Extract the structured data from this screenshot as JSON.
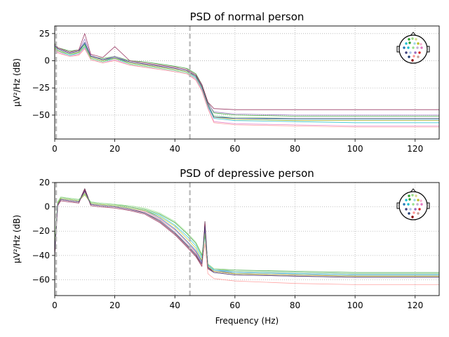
{
  "chart_data": [
    {
      "type": "line",
      "title": "PSD of normal person",
      "xlabel": "",
      "ylabel": "µV²/Hz (dB)",
      "xlim": [
        0,
        128
      ],
      "ylim": [
        -72,
        32
      ],
      "xticks": [
        0,
        20,
        40,
        60,
        80,
        100,
        120
      ],
      "yticks": [
        25,
        0,
        -25,
        -50
      ],
      "grid": true,
      "vlines": [
        0.5,
        45
      ],
      "sensor_inset": "top-right",
      "series": [
        {
          "color": "#2ca02c",
          "x": [
            0,
            1,
            5,
            8,
            10,
            12,
            16,
            20,
            25,
            30,
            35,
            40,
            44,
            47,
            49,
            51,
            53,
            60,
            80,
            100,
            128
          ],
          "y": [
            16,
            12,
            9,
            10,
            15,
            4,
            2,
            4,
            0,
            -1,
            -3,
            -5,
            -7,
            -12,
            -22,
            -38,
            -48,
            -50,
            -51,
            -51,
            -51
          ]
        },
        {
          "color": "#1f77b4",
          "x": [
            0,
            1,
            5,
            8,
            10,
            12,
            16,
            20,
            25,
            30,
            35,
            40,
            44,
            47,
            49,
            51,
            53,
            60,
            80,
            100,
            128
          ],
          "y": [
            13,
            10,
            6,
            8,
            16,
            3,
            0,
            3,
            -2,
            -4,
            -6,
            -8,
            -10,
            -15,
            -24,
            -40,
            -51,
            -53,
            -54,
            -54,
            -54
          ]
        },
        {
          "color": "#9467bd",
          "x": [
            0,
            1,
            5,
            8,
            10,
            12,
            16,
            20,
            25,
            30,
            35,
            40,
            44,
            47,
            49,
            51,
            53,
            60,
            80,
            100,
            128
          ],
          "y": [
            14,
            11,
            7,
            9,
            20,
            5,
            1,
            4,
            -1,
            -3,
            -5,
            -7,
            -9,
            -14,
            -23,
            -39,
            -47,
            -49,
            -50,
            -50,
            -50
          ]
        },
        {
          "color": "#8b1a4b",
          "x": [
            0,
            1,
            5,
            8,
            10,
            12,
            16,
            20,
            25,
            30,
            35,
            40,
            44,
            47,
            49,
            51,
            53,
            60,
            80,
            100,
            128
          ],
          "y": [
            15,
            12,
            8,
            10,
            25,
            6,
            3,
            13,
            0,
            -2,
            -4,
            -6,
            -8,
            -13,
            -22,
            -38,
            -44,
            -45,
            -45,
            -45,
            -45
          ]
        },
        {
          "color": "#17becf",
          "x": [
            0,
            1,
            5,
            8,
            10,
            12,
            16,
            20,
            25,
            30,
            35,
            40,
            44,
            47,
            49,
            51,
            53,
            60,
            80,
            100,
            128
          ],
          "y": [
            12,
            9,
            5,
            7,
            13,
            2,
            -1,
            2,
            -3,
            -5,
            -7,
            -9,
            -11,
            -16,
            -26,
            -42,
            -53,
            -55,
            -56,
            -57,
            -57
          ]
        },
        {
          "color": "#e377c2",
          "x": [
            0,
            1,
            5,
            8,
            10,
            12,
            16,
            20,
            25,
            30,
            35,
            40,
            44,
            47,
            49,
            51,
            53,
            60,
            80,
            100,
            128
          ],
          "y": [
            11,
            8,
            4,
            6,
            12,
            1,
            -2,
            1,
            -4,
            -6,
            -8,
            -10,
            -12,
            -17,
            -27,
            -43,
            -56,
            -58,
            -59,
            -60,
            -60
          ]
        },
        {
          "color": "#bcbd22",
          "x": [
            0,
            1,
            5,
            8,
            10,
            12,
            16,
            20,
            25,
            30,
            35,
            40,
            44,
            47,
            49,
            51,
            53,
            60,
            80,
            100,
            128
          ],
          "y": [
            12,
            9,
            6,
            8,
            14,
            3,
            0,
            2,
            -2,
            -4,
            -6,
            -8,
            -10,
            -14,
            -24,
            -40,
            -52,
            -54,
            -55,
            -55,
            -55
          ]
        },
        {
          "color": "#ff9896",
          "x": [
            0,
            1,
            5,
            8,
            10,
            12,
            16,
            20,
            25,
            30,
            35,
            40,
            44,
            47,
            49,
            51,
            53,
            60,
            80,
            100,
            128
          ],
          "y": [
            10,
            7,
            4,
            5,
            11,
            1,
            -2,
            0,
            -4,
            -6,
            -8,
            -10,
            -12,
            -18,
            -28,
            -44,
            -57,
            -59,
            -60,
            -61,
            -61
          ]
        },
        {
          "color": "#98df8a",
          "x": [
            0,
            1,
            5,
            8,
            10,
            12,
            16,
            20,
            25,
            30,
            35,
            40,
            44,
            47,
            49,
            51,
            53,
            60,
            80,
            100,
            128
          ],
          "y": [
            13,
            10,
            6,
            7,
            14,
            2,
            -1,
            3,
            -3,
            -5,
            -7,
            -9,
            -11,
            -16,
            -25,
            -41,
            -51,
            -52,
            -53,
            -53,
            -53
          ]
        },
        {
          "color": "#393b79",
          "x": [
            0,
            1,
            5,
            8,
            10,
            12,
            16,
            20,
            25,
            30,
            35,
            40,
            44,
            47,
            49,
            51,
            53,
            60,
            80,
            100,
            128
          ],
          "y": [
            14,
            11,
            7,
            9,
            17,
            4,
            1,
            3,
            -1,
            -3,
            -5,
            -7,
            -9,
            -14,
            -24,
            -40,
            -52,
            -53,
            -53,
            -53,
            -53
          ]
        }
      ]
    },
    {
      "type": "line",
      "title": "PSD of depressive person",
      "xlabel": "Frequency (Hz)",
      "ylabel": "µV²/Hz (dB)",
      "xlim": [
        0,
        128
      ],
      "ylim": [
        -73,
        20
      ],
      "xticks": [
        0,
        20,
        40,
        60,
        80,
        100,
        120
      ],
      "yticks": [
        20,
        0,
        -20,
        -40,
        -60
      ],
      "grid": true,
      "vlines": [
        0.5,
        45
      ],
      "sensor_inset": "top-right",
      "series": [
        {
          "color": "#4b0f2e",
          "x": [
            0,
            1,
            2,
            5,
            8,
            10,
            12,
            15,
            20,
            25,
            30,
            35,
            40,
            44,
            47,
            49,
            50,
            51,
            53,
            60,
            80,
            100,
            128
          ],
          "y": [
            -40,
            2,
            6,
            5,
            4,
            15,
            2,
            1,
            0,
            -2,
            -5,
            -12,
            -22,
            -32,
            -40,
            -48,
            -12,
            -50,
            -53,
            -55,
            -56,
            -57,
            -57
          ]
        },
        {
          "color": "#1f77b4",
          "x": [
            0,
            1,
            2,
            5,
            8,
            10,
            12,
            15,
            20,
            25,
            30,
            35,
            40,
            44,
            47,
            49,
            50,
            51,
            53,
            60,
            80,
            100,
            128
          ],
          "y": [
            -35,
            3,
            7,
            6,
            5,
            12,
            3,
            2,
            1,
            -1,
            -3,
            -9,
            -18,
            -28,
            -36,
            -45,
            -20,
            -48,
            -52,
            -53,
            -54,
            -55,
            -55
          ]
        },
        {
          "color": "#2ca02c",
          "x": [
            0,
            1,
            2,
            5,
            8,
            10,
            12,
            15,
            20,
            25,
            30,
            35,
            40,
            44,
            47,
            49,
            50,
            51,
            53,
            60,
            80,
            100,
            128
          ],
          "y": [
            -30,
            4,
            8,
            7,
            6,
            11,
            4,
            3,
            2,
            0,
            -2,
            -6,
            -13,
            -22,
            -30,
            -40,
            -22,
            -47,
            -51,
            -52,
            -53,
            -54,
            -54
          ]
        },
        {
          "color": "#9467bd",
          "x": [
            0,
            1,
            2,
            5,
            8,
            10,
            12,
            15,
            20,
            25,
            30,
            35,
            40,
            44,
            47,
            49,
            50,
            51,
            53,
            60,
            80,
            100,
            128
          ],
          "y": [
            -33,
            2,
            6,
            5,
            4,
            13,
            2,
            1,
            0,
            -2,
            -4,
            -10,
            -19,
            -29,
            -37,
            -46,
            -18,
            -49,
            -53,
            -54,
            -55,
            -56,
            -56
          ]
        },
        {
          "color": "#17becf",
          "x": [
            0,
            1,
            2,
            5,
            8,
            10,
            12,
            15,
            20,
            25,
            30,
            35,
            40,
            44,
            47,
            49,
            50,
            51,
            53,
            60,
            80,
            100,
            128
          ],
          "y": [
            -32,
            3,
            7,
            6,
            5,
            10,
            3,
            2,
            1,
            -1,
            -3,
            -7,
            -15,
            -24,
            -32,
            -42,
            -24,
            -48,
            -52,
            -54,
            -55,
            -56,
            -56
          ]
        },
        {
          "color": "#8b1a4b",
          "x": [
            0,
            1,
            2,
            5,
            8,
            10,
            12,
            15,
            20,
            25,
            30,
            35,
            40,
            44,
            47,
            49,
            50,
            51,
            53,
            60,
            80,
            100,
            128
          ],
          "y": [
            -38,
            1,
            5,
            4,
            3,
            14,
            1,
            0,
            -1,
            -3,
            -6,
            -13,
            -23,
            -33,
            -41,
            -49,
            -14,
            -51,
            -54,
            -56,
            -57,
            -58,
            -58
          ]
        },
        {
          "color": "#bcbd22",
          "x": [
            0,
            1,
            2,
            5,
            8,
            10,
            12,
            15,
            20,
            25,
            30,
            35,
            40,
            44,
            47,
            49,
            50,
            51,
            53,
            60,
            80,
            100,
            128
          ],
          "y": [
            -31,
            3,
            7,
            6,
            5,
            10,
            3,
            2,
            1,
            -1,
            -3,
            -8,
            -16,
            -26,
            -34,
            -44,
            -22,
            -49,
            -53,
            -55,
            -56,
            -57,
            -57
          ]
        },
        {
          "color": "#ff9896",
          "x": [
            0,
            1,
            2,
            5,
            8,
            10,
            12,
            15,
            20,
            25,
            30,
            35,
            40,
            44,
            47,
            49,
            50,
            51,
            53,
            60,
            80,
            100,
            128
          ],
          "y": [
            -36,
            2,
            6,
            5,
            4,
            12,
            2,
            1,
            0,
            -2,
            -4,
            -10,
            -19,
            -29,
            -38,
            -48,
            -30,
            -55,
            -59,
            -61,
            -63,
            -64,
            -64
          ]
        },
        {
          "color": "#98df8a",
          "x": [
            0,
            1,
            2,
            5,
            8,
            10,
            12,
            15,
            20,
            25,
            30,
            35,
            40,
            44,
            47,
            49,
            50,
            51,
            53,
            60,
            80,
            100,
            128
          ],
          "y": [
            -29,
            4,
            8,
            7,
            6,
            11,
            4,
            3,
            2,
            1,
            -1,
            -5,
            -12,
            -21,
            -29,
            -39,
            -22,
            -47,
            -51,
            -53,
            -54,
            -55,
            -55
          ]
        },
        {
          "color": "#393b79",
          "x": [
            0,
            1,
            2,
            5,
            8,
            10,
            12,
            15,
            20,
            25,
            30,
            35,
            40,
            44,
            47,
            49,
            50,
            51,
            53,
            60,
            80,
            100,
            128
          ],
          "y": [
            -37,
            2,
            6,
            5,
            4,
            13,
            2,
            1,
            0,
            -2,
            -5,
            -11,
            -21,
            -31,
            -39,
            -47,
            -16,
            -50,
            -54,
            -56,
            -57,
            -58,
            -58
          ]
        }
      ]
    }
  ]
}
